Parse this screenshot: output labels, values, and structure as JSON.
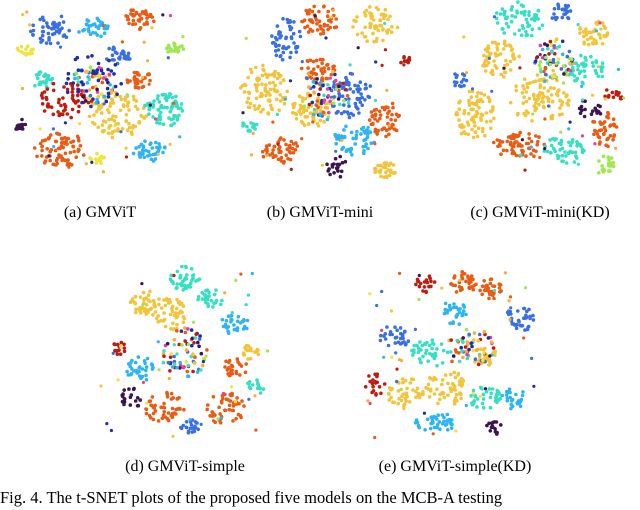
{
  "figure": {
    "subfigures": [
      {
        "label": "(a)  GMViT"
      },
      {
        "label": "(b)  GMViT-mini"
      },
      {
        "label": "(c)  GMViT-mini(KD)"
      },
      {
        "label": "(d)  GMViT-simple"
      },
      {
        "label": "(e)  GMViT-simple(KD)"
      }
    ],
    "caption": "Fig. 4.   The t-SNET plots of the proposed five models on the MCB-A testing",
    "palette": [
      "#f2c43a",
      "#ea5b13",
      "#35dfc1",
      "#3a6fe2",
      "#2cb5f2",
      "#c11b10",
      "#9ee84f",
      "#3a1552",
      "#e73fa0",
      "#f0e33f",
      "#1d2ea6",
      "#ffa93a"
    ]
  }
}
